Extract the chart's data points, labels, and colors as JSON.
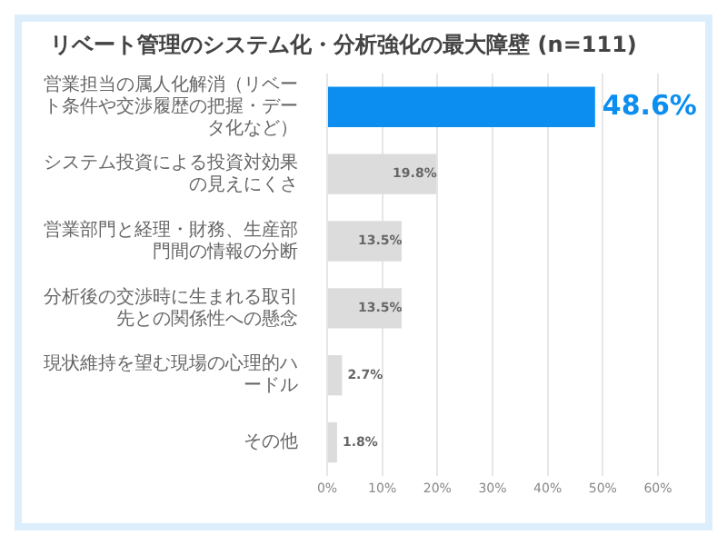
{
  "chart_data": {
    "type": "bar",
    "orientation": "horizontal",
    "title": "リベート管理のシステム化・分析強化の最大障壁 (n=111)",
    "categories": [
      "営業担当の属人化解消（リベート条件や交渉履歴の把握・データ化など）",
      "システム投資による投資対効果の見えにくさ",
      "営業部門と経理・財務、生産部門間の情報の分断",
      "分析後の交渉時に生まれる取引先との関係性への懸念",
      "現状維持を望む現場の心理的ハードル",
      "その他"
    ],
    "values": [
      48.6,
      19.8,
      13.5,
      13.5,
      2.7,
      1.8
    ],
    "colors": [
      "#0b8ef0",
      "#dcdcdc",
      "#dcdcdc",
      "#dcdcdc",
      "#dcdcdc",
      "#dcdcdc"
    ],
    "value_labels": [
      "48.6%",
      "19.8%",
      "13.5%",
      "13.5%",
      "2.7%",
      "1.8%"
    ],
    "xlim": [
      0,
      60
    ],
    "xticks": [
      {
        "value": 0,
        "label": "0%"
      },
      {
        "value": 10,
        "label": "10%"
      },
      {
        "value": 20,
        "label": "20%"
      },
      {
        "value": 30,
        "label": "30%"
      },
      {
        "value": 40,
        "label": "40%"
      },
      {
        "value": 50,
        "label": "50%"
      },
      {
        "value": 60,
        "label": "60%"
      }
    ],
    "grid": "x",
    "legend": false
  }
}
